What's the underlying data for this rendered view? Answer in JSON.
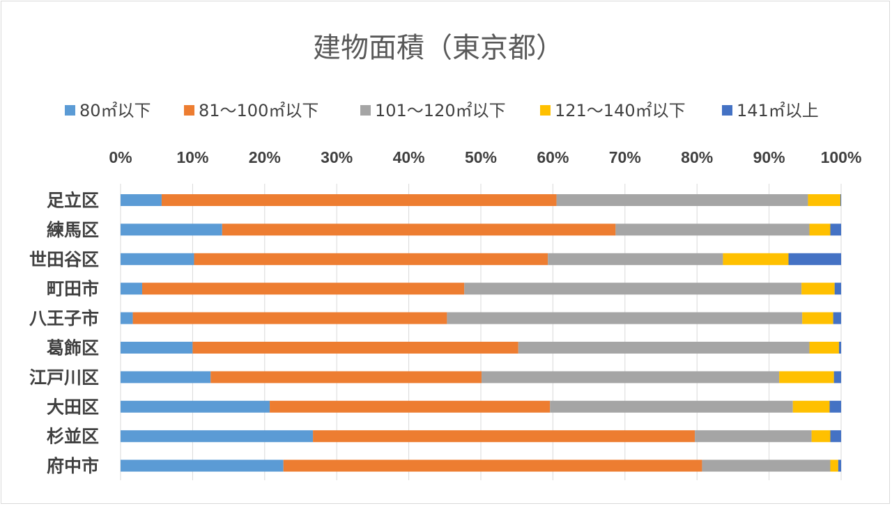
{
  "chart_data": {
    "type": "bar",
    "orientation": "horizontal",
    "stacked": "percent",
    "title": "建物面積（東京都）",
    "x_ticks": [
      "0%",
      "10%",
      "20%",
      "30%",
      "40%",
      "50%",
      "60%",
      "70%",
      "80%",
      "90%",
      "100%"
    ],
    "xlim": [
      0,
      100
    ],
    "grid": true,
    "legend_position": "top",
    "categories": [
      "足立区",
      "練馬区",
      "世田谷区",
      "町田市",
      "八王子市",
      "葛飾区",
      "江戸川区",
      "大田区",
      "杉並区",
      "府中市"
    ],
    "series": [
      {
        "name": "80㎡以下",
        "color": "#5b9bd5",
        "values": [
          5.7,
          14.1,
          10.2,
          3.0,
          1.7,
          10.0,
          12.5,
          20.7,
          26.7,
          22.6
        ]
      },
      {
        "name": "81～100㎡以下",
        "color": "#ed7d31",
        "values": [
          54.8,
          54.6,
          49.1,
          44.7,
          43.6,
          45.2,
          37.6,
          38.9,
          53.0,
          58.1
        ]
      },
      {
        "name": "101～120㎡以下",
        "color": "#a5a5a5",
        "values": [
          34.9,
          26.9,
          24.3,
          46.8,
          49.3,
          40.4,
          41.3,
          33.7,
          16.2,
          17.8
        ]
      },
      {
        "name": "121～140㎡以下",
        "color": "#ffc000",
        "values": [
          4.5,
          2.9,
          9.1,
          4.6,
          4.3,
          4.1,
          7.6,
          5.1,
          2.6,
          1.1
        ]
      },
      {
        "name": "141㎡以上",
        "color": "#4472c4",
        "values": [
          0.1,
          1.5,
          7.3,
          0.9,
          1.1,
          0.3,
          1.0,
          1.6,
          1.5,
          0.4
        ]
      }
    ]
  }
}
